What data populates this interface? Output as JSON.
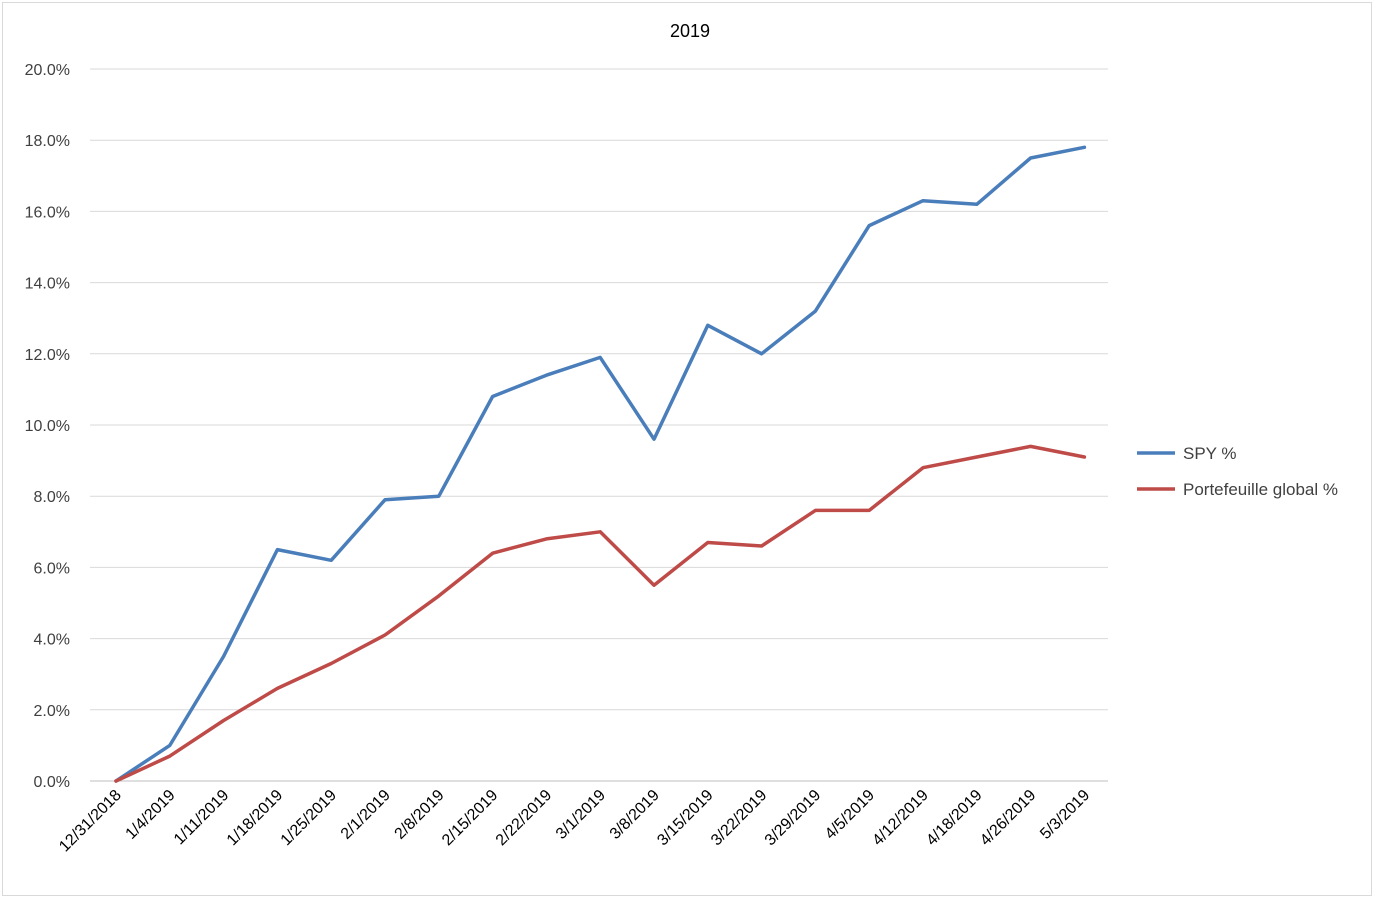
{
  "chart_data": {
    "type": "line",
    "title": "2019",
    "xlabel": "",
    "ylabel": "",
    "ylim": [
      0,
      20
    ],
    "yticks": [
      0,
      2,
      4,
      6,
      8,
      10,
      12,
      14,
      16,
      18,
      20
    ],
    "ytick_labels": [
      "0.0%",
      "2.0%",
      "4.0%",
      "6.0%",
      "8.0%",
      "10.0%",
      "12.0%",
      "14.0%",
      "16.0%",
      "18.0%",
      "20.0%"
    ],
    "categories": [
      "12/31/2018",
      "1/4/2019",
      "1/11/2019",
      "1/18/2019",
      "1/25/2019",
      "2/1/2019",
      "2/8/2019",
      "2/15/2019",
      "2/22/2019",
      "3/1/2019",
      "3/8/2019",
      "3/15/2019",
      "3/22/2019",
      "3/29/2019",
      "4/5/2019",
      "4/12/2019",
      "4/18/2019",
      "4/26/2019",
      "5/3/2019"
    ],
    "grid": true,
    "legend_position": "right",
    "series": [
      {
        "name": "SPY %",
        "color": "#4a7ebb",
        "values": [
          0.0,
          1.0,
          3.5,
          6.5,
          6.2,
          7.9,
          8.0,
          10.8,
          11.4,
          11.9,
          9.6,
          12.8,
          12.0,
          13.2,
          15.6,
          16.3,
          16.2,
          17.5,
          17.8
        ]
      },
      {
        "name": "Portefeuille global %",
        "color": "#be4b48",
        "values": [
          0.0,
          0.7,
          1.7,
          2.6,
          3.3,
          4.1,
          5.2,
          6.4,
          6.8,
          7.0,
          5.5,
          6.7,
          6.6,
          7.6,
          7.6,
          8.8,
          9.1,
          9.4,
          9.1
        ]
      }
    ]
  }
}
